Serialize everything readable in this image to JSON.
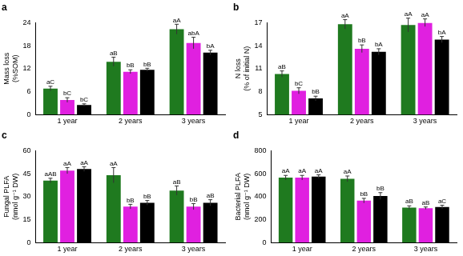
{
  "chart_data": [
    {
      "type": "bar",
      "title": "a",
      "y_label": [
        "Mass loss",
        "(%SOM)"
      ],
      "categories": [
        "1 year",
        "2 years",
        "3 years"
      ],
      "ylim": [
        0,
        24
      ],
      "yticks": [
        0,
        6,
        12,
        18,
        24
      ],
      "grid": false,
      "series": [
        {
          "color": "#1f7a1f",
          "values": [
            6.8,
            13.8,
            22.3
          ],
          "errors": [
            0.6,
            1.2,
            1.3
          ],
          "annotations": [
            "aC",
            "aB",
            "aA"
          ]
        },
        {
          "color": "#e020e0",
          "values": [
            3.8,
            11.2,
            18.7
          ],
          "errors": [
            0.6,
            0.5,
            1.5
          ],
          "annotations": [
            "bC",
            "bB",
            "abA"
          ]
        },
        {
          "color": "#000000",
          "values": [
            2.5,
            11.7,
            16.2
          ],
          "errors": [
            0.3,
            0.4,
            0.6
          ],
          "annotations": [
            "bC",
            "bB",
            "bA"
          ]
        }
      ]
    },
    {
      "type": "bar",
      "title": "b",
      "y_label": [
        "N loss",
        "(% of initial N)"
      ],
      "categories": [
        "1 year",
        "2 years",
        "3 years"
      ],
      "ylim": [
        5,
        17
      ],
      "yticks": [
        5,
        8,
        11,
        14,
        17
      ],
      "grid": false,
      "series": [
        {
          "color": "#1f7a1f",
          "values": [
            10.3,
            16.8,
            16.7
          ],
          "errors": [
            0.4,
            0.6,
            0.9
          ],
          "annotations": [
            "aB",
            "aA",
            "aA"
          ]
        },
        {
          "color": "#e020e0",
          "values": [
            8.1,
            13.6,
            17.0
          ],
          "errors": [
            0.4,
            0.5,
            0.5
          ],
          "annotations": [
            "bC",
            "bB",
            "aA"
          ]
        },
        {
          "color": "#000000",
          "values": [
            7.1,
            13.2,
            14.8
          ],
          "errors": [
            0.3,
            0.4,
            0.4
          ],
          "annotations": [
            "bB",
            "bA",
            "bA"
          ]
        }
      ]
    },
    {
      "type": "bar",
      "title": "c",
      "y_label": [
        "Fungal PLFA",
        "(nmol g⁻¹ DW)"
      ],
      "categories": [
        "1 year",
        "2 years",
        "3 years"
      ],
      "ylim": [
        0,
        60
      ],
      "yticks": [
        0,
        15,
        30,
        45,
        60
      ],
      "grid": false,
      "series": [
        {
          "color": "#1f7a1f",
          "values": [
            40.5,
            44,
            34
          ],
          "errors": [
            1.5,
            5,
            3
          ],
          "annotations": [
            "aAB",
            "aA",
            "aB"
          ]
        },
        {
          "color": "#e020e0",
          "values": [
            47,
            23.5,
            23.5
          ],
          "errors": [
            2,
            1.5,
            2
          ],
          "annotations": [
            "aA",
            "bB",
            "bB"
          ]
        },
        {
          "color": "#000000",
          "values": [
            48,
            26,
            26
          ],
          "errors": [
            1.5,
            1.5,
            2
          ],
          "annotations": [
            "aA",
            "bB",
            "aB"
          ]
        }
      ]
    },
    {
      "type": "bar",
      "title": "d",
      "y_label": [
        "Bacterial PLFA",
        "(nmol g⁻¹ DW)"
      ],
      "categories": [
        "1 year",
        "2 years",
        "3 years"
      ],
      "ylim": [
        0,
        800
      ],
      "yticks": [
        0,
        200,
        400,
        600,
        800
      ],
      "grid": false,
      "series": [
        {
          "color": "#1f7a1f",
          "values": [
            565,
            555,
            305
          ],
          "errors": [
            20,
            25,
            15
          ],
          "annotations": [
            "aA",
            "aA",
            "aB"
          ]
        },
        {
          "color": "#e020e0",
          "values": [
            565,
            365,
            300
          ],
          "errors": [
            20,
            20,
            10
          ],
          "annotations": [
            "aA",
            "bB",
            "aB"
          ]
        },
        {
          "color": "#000000",
          "values": [
            575,
            405,
            310
          ],
          "errors": [
            15,
            30,
            15
          ],
          "annotations": [
            "aA",
            "bB",
            "aC"
          ]
        }
      ]
    }
  ]
}
